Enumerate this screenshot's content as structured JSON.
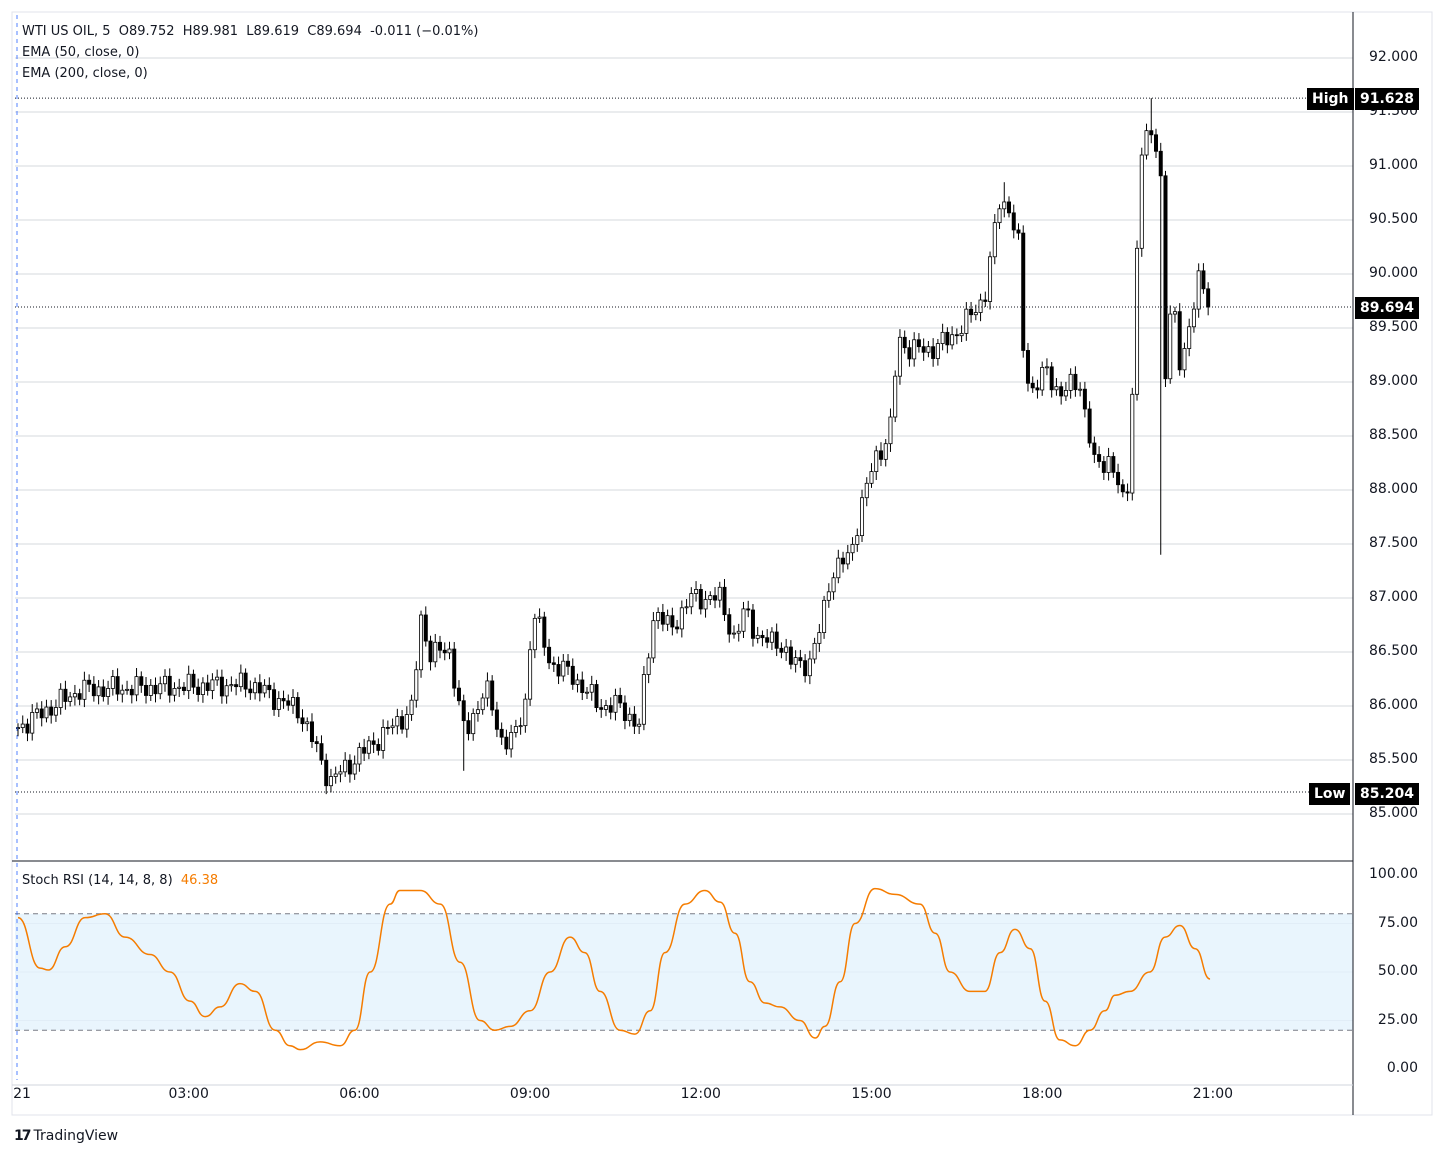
{
  "header": {
    "symbol_line": "WTI US OIL, 5  O89.752  H89.981  L89.619  C89.694  -0.011 (−0.01%)",
    "ema50": "EMA (50, close, 0)",
    "ema200": "EMA (200, close, 0)"
  },
  "stoch_header": {
    "label": "Stoch RSI (14, 14, 8, 8)",
    "value": "46.38"
  },
  "tags": {
    "high_label": "High",
    "high_value": "91.628",
    "low_label": "Low",
    "low_value": "85.204",
    "last_value": "89.694"
  },
  "brand": "TradingView",
  "colors": {
    "stoch_line": "#f57c00",
    "band_fill": "#e3f2fd",
    "candle": "#000000"
  },
  "chart_data": [
    {
      "type": "candlestick",
      "title": "WTI US OIL, 5",
      "interval_minutes": 5,
      "y_ticks": [
        "92.000",
        "91.500",
        "91.000",
        "90.500",
        "90.000",
        "89.500",
        "89.000",
        "88.500",
        "88.000",
        "87.500",
        "87.000",
        "86.500",
        "86.000",
        "85.500",
        "85.000"
      ],
      "ylim": [
        84.7,
        92.4
      ],
      "x_ticks": [
        "21",
        "03:00",
        "06:00",
        "09:00",
        "12:00",
        "15:00",
        "18:00",
        "21:00"
      ],
      "xlim_hours": [
        0,
        23.5
      ],
      "close_path_hours_price": [
        [
          0,
          85.8
        ],
        [
          1.09,
          86.15
        ],
        [
          4.08,
          86.2
        ],
        [
          4.96,
          85.95
        ],
        [
          5.48,
          85.3
        ],
        [
          6.98,
          86.0
        ],
        [
          7.03,
          86.9
        ],
        [
          7.24,
          86.5
        ],
        [
          7.59,
          86.5
        ],
        [
          7.86,
          85.7
        ],
        [
          8.21,
          86.2
        ],
        [
          8.47,
          85.7
        ],
        [
          8.73,
          85.7
        ],
        [
          8.91,
          86.0
        ],
        [
          9.05,
          86.9
        ],
        [
          9.35,
          86.4
        ],
        [
          9.7,
          86.3
        ],
        [
          10.23,
          86.0
        ],
        [
          10.58,
          86.0
        ],
        [
          10.93,
          85.8
        ],
        [
          11.02,
          86.3
        ],
        [
          11.19,
          86.9
        ],
        [
          11.46,
          86.7
        ],
        [
          11.81,
          87.0
        ],
        [
          12.34,
          87.0
        ],
        [
          12.6,
          86.6
        ],
        [
          12.78,
          86.9
        ],
        [
          13.04,
          86.6
        ],
        [
          13.39,
          86.6
        ],
        [
          13.57,
          86.4
        ],
        [
          13.92,
          86.4
        ],
        [
          14.09,
          86.7
        ],
        [
          14.27,
          87.2
        ],
        [
          14.62,
          87.4
        ],
        [
          14.8,
          87.8
        ],
        [
          15.06,
          88.3
        ],
        [
          15.32,
          88.5
        ],
        [
          15.47,
          89.4
        ],
        [
          15.68,
          89.3
        ],
        [
          16.03,
          89.3
        ],
        [
          16.38,
          89.4
        ],
        [
          16.73,
          89.6
        ],
        [
          16.99,
          89.8
        ],
        [
          17.14,
          90.3
        ],
        [
          17.26,
          90.7
        ],
        [
          17.43,
          90.6
        ],
        [
          17.61,
          90.2
        ],
        [
          17.64,
          89.4
        ],
        [
          17.79,
          88.9
        ],
        [
          18.05,
          89.1
        ],
        [
          18.31,
          88.9
        ],
        [
          18.66,
          89.0
        ],
        [
          18.93,
          88.2
        ],
        [
          19.19,
          88.3
        ],
        [
          19.46,
          87.8
        ],
        [
          19.54,
          88.3
        ],
        [
          19.63,
          89.6
        ],
        [
          19.72,
          91.1
        ],
        [
          19.89,
          91.3
        ],
        [
          20.07,
          91.2
        ],
        [
          20.16,
          89.0
        ],
        [
          20.28,
          89.8
        ],
        [
          20.42,
          89.2
        ],
        [
          20.6,
          89.5
        ],
        [
          20.77,
          90.0
        ],
        [
          20.95,
          89.694
        ]
      ],
      "extreme_wicks_hours_price": [
        [
          5.48,
          85.204
        ],
        [
          19.89,
          91.628
        ],
        [
          20.1,
          87.4
        ],
        [
          7.86,
          85.4
        ],
        [
          17.3,
          90.85
        ]
      ],
      "high": 91.628,
      "low": 85.204,
      "last": 89.694
    },
    {
      "type": "line",
      "title": "Stoch RSI (14, 14, 8, 8)",
      "last_value": 46.38,
      "y_ticks": [
        "100.00",
        "75.00",
        "50.00",
        "25.00",
        "0.00"
      ],
      "ylim": [
        0,
        100
      ],
      "band": [
        20,
        80
      ],
      "points_hours_value": [
        [
          0,
          78
        ],
        [
          0.39,
          52
        ],
        [
          0.53,
          51
        ],
        [
          0.83,
          63
        ],
        [
          1.18,
          78
        ],
        [
          1.53,
          80
        ],
        [
          1.88,
          68
        ],
        [
          2.32,
          59
        ],
        [
          2.67,
          50
        ],
        [
          3.02,
          35
        ],
        [
          3.29,
          27
        ],
        [
          3.55,
          32
        ],
        [
          3.9,
          44
        ],
        [
          4.17,
          40
        ],
        [
          4.52,
          20
        ],
        [
          4.78,
          12
        ],
        [
          4.96,
          10
        ],
        [
          5.31,
          14
        ],
        [
          5.66,
          12
        ],
        [
          5.92,
          20
        ],
        [
          6.19,
          50
        ],
        [
          6.54,
          85
        ],
        [
          6.71,
          92
        ],
        [
          7.07,
          92
        ],
        [
          7.42,
          85
        ],
        [
          7.77,
          55
        ],
        [
          8.12,
          25
        ],
        [
          8.38,
          20
        ],
        [
          8.65,
          22
        ],
        [
          9.0,
          30
        ],
        [
          9.35,
          50
        ],
        [
          9.7,
          68
        ],
        [
          9.96,
          60
        ],
        [
          10.23,
          40
        ],
        [
          10.58,
          20
        ],
        [
          10.84,
          18
        ],
        [
          11.11,
          30
        ],
        [
          11.37,
          60
        ],
        [
          11.72,
          85
        ],
        [
          12.07,
          92
        ],
        [
          12.34,
          86
        ],
        [
          12.6,
          70
        ],
        [
          12.86,
          45
        ],
        [
          13.13,
          34
        ],
        [
          13.39,
          32
        ],
        [
          13.74,
          25
        ],
        [
          14.01,
          16
        ],
        [
          14.18,
          22
        ],
        [
          14.45,
          45
        ],
        [
          14.71,
          75
        ],
        [
          15.06,
          93
        ],
        [
          15.41,
          90
        ],
        [
          15.85,
          85
        ],
        [
          16.12,
          70
        ],
        [
          16.38,
          50
        ],
        [
          16.73,
          40
        ],
        [
          16.99,
          40
        ],
        [
          17.26,
          60
        ],
        [
          17.52,
          72
        ],
        [
          17.79,
          62
        ],
        [
          18.05,
          35
        ],
        [
          18.31,
          15
        ],
        [
          18.58,
          12
        ],
        [
          18.84,
          20
        ],
        [
          19.1,
          30
        ],
        [
          19.28,
          38
        ],
        [
          19.54,
          40
        ],
        [
          19.89,
          50
        ],
        [
          20.16,
          68
        ],
        [
          20.42,
          74
        ],
        [
          20.69,
          62
        ],
        [
          20.95,
          46.38
        ]
      ]
    }
  ]
}
